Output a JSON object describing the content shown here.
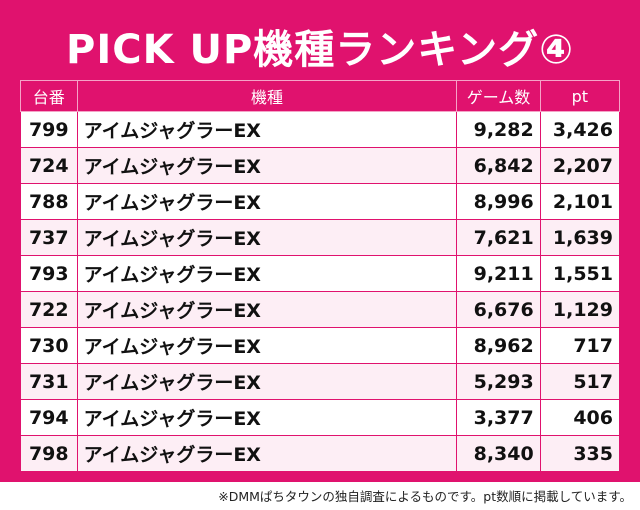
{
  "title": "PICK UP機種ランキング④",
  "columns": {
    "no": "台番",
    "name": "機種",
    "games": "ゲーム数",
    "pt": "pt"
  },
  "rows": [
    {
      "no": "799",
      "name": "アイムジャグラーEX",
      "games": "9,282",
      "pt": "3,426"
    },
    {
      "no": "724",
      "name": "アイムジャグラーEX",
      "games": "6,842",
      "pt": "2,207"
    },
    {
      "no": "788",
      "name": "アイムジャグラーEX",
      "games": "8,996",
      "pt": "2,101"
    },
    {
      "no": "737",
      "name": "アイムジャグラーEX",
      "games": "7,621",
      "pt": "1,639"
    },
    {
      "no": "793",
      "name": "アイムジャグラーEX",
      "games": "9,211",
      "pt": "1,551"
    },
    {
      "no": "722",
      "name": "アイムジャグラーEX",
      "games": "6,676",
      "pt": "1,129"
    },
    {
      "no": "730",
      "name": "アイムジャグラーEX",
      "games": "8,962",
      "pt": "717"
    },
    {
      "no": "731",
      "name": "アイムジャグラーEX",
      "games": "5,293",
      "pt": "517"
    },
    {
      "no": "794",
      "name": "アイムジャグラーEX",
      "games": "3,377",
      "pt": "406"
    },
    {
      "no": "798",
      "name": "アイムジャグラーEX",
      "games": "8,340",
      "pt": "335"
    }
  ],
  "footnote": "※DMMぱちタウンの独自調査によるものです。pt数順に掲載しています。",
  "colors": {
    "accent": "#e0126e",
    "row_alt": "#fdeef5"
  }
}
